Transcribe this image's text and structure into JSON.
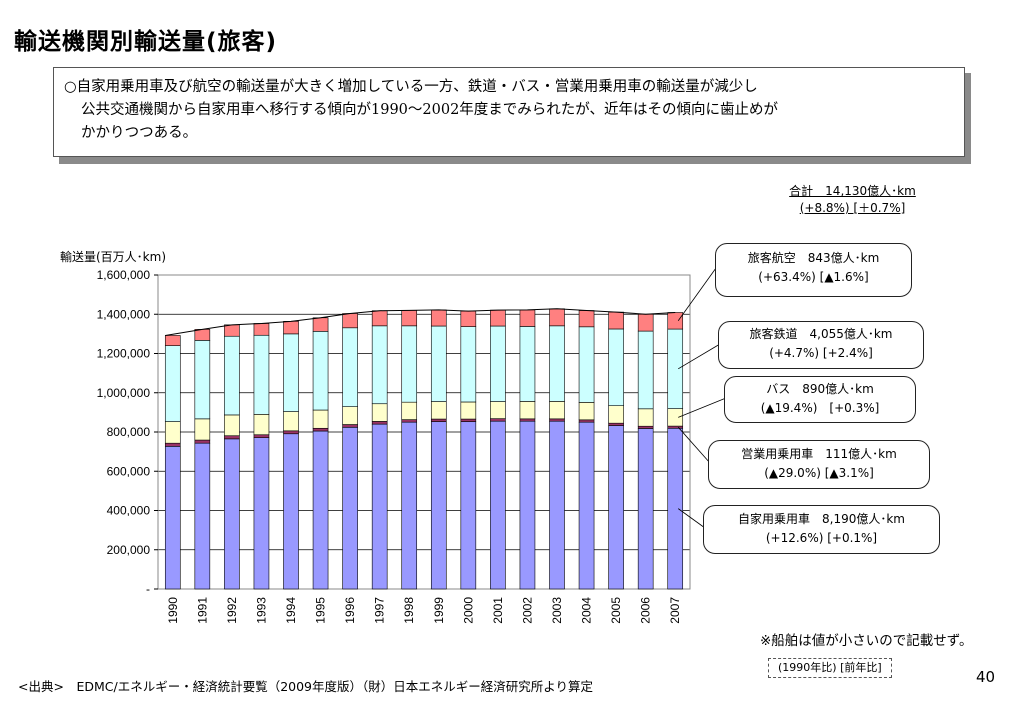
{
  "page": {
    "title": "輸送機関別輸送量(旅客)",
    "summary_lines": [
      "○自家用乗用車及び航空の輸送量が大きく増加している一方、鉄道・バス・営業用乗用車の輸送量が減少し",
      "公共交通機関から自家用車へ移行する傾向が1990〜2002年度までみられたが、近年はその傾向に歯止めが",
      "かかりつつある。"
    ],
    "total_line1": "合計　14,130億人･km",
    "total_line2": "(+8.8%) [＋0.7%]",
    "ylabel": "輸送量(百万人･km)",
    "ship_note": "※船舶は値が小さいので記載せず。",
    "legend_note": "(1990年比) [前年比]",
    "source": "<出典>　EDMC/エネルギー・経済統計要覧（2009年度版）（財）日本エネルギー経済研究所より算定",
    "page_number": "40"
  },
  "callouts": [
    {
      "line1": "旅客航空　843億人･km",
      "line2": "(+63.4%) [▲1.6%]"
    },
    {
      "line1": "旅客鉄道　4,055億人･km",
      "line2": "(+4.7%)  [+2.4%]"
    },
    {
      "line1": "バス　890億人･km",
      "line2": "(▲19.4%)　[+0.3%]"
    },
    {
      "line1": "営業用乗用車　111億人･km",
      "line2": "(▲29.0%)  [▲3.1%]"
    },
    {
      "line1": "自家用乗用車　8,190億人･km",
      "line2": "(+12.6%)  [+0.1%]"
    }
  ],
  "chart_data": {
    "type": "bar",
    "stacked": true,
    "categories": [
      "1990",
      "1991",
      "1992",
      "1993",
      "1994",
      "1995",
      "1996",
      "1997",
      "1998",
      "1999",
      "2000",
      "2001",
      "2002",
      "2003",
      "2004",
      "2005",
      "2006",
      "2007"
    ],
    "ylim": [
      0,
      1600000
    ],
    "yticks": [
      0,
      200000,
      400000,
      600000,
      800000,
      1000000,
      1200000,
      1400000,
      1600000
    ],
    "ytick_labels": [
      "-",
      "200,000",
      "400,000",
      "600,000",
      "800,000",
      "1,000,000",
      "1,200,000",
      "1,400,000",
      "1,600,000"
    ],
    "grid": true,
    "colors": {
      "private_car": "#9999ff",
      "commercial_car": "#993366",
      "bus": "#ffffcc",
      "rail": "#ccffff",
      "air": "#ff8080",
      "total_line": "#000000"
    },
    "series": [
      {
        "key": "private_car",
        "values": [
          727000,
          743000,
          765000,
          771000,
          791000,
          805000,
          824000,
          840000,
          850000,
          853000,
          853000,
          855000,
          855000,
          855000,
          850000,
          833000,
          818000,
          819000
        ]
      },
      {
        "key": "commercial_car",
        "values": [
          16000,
          16000,
          16000,
          15000,
          15000,
          14000,
          14000,
          14000,
          13000,
          13000,
          13000,
          13000,
          12000,
          12000,
          12000,
          12000,
          11500,
          11100
        ]
      },
      {
        "key": "bus",
        "values": [
          110000,
          108000,
          106000,
          104000,
          98000,
          93000,
          91000,
          90000,
          89000,
          89000,
          87000,
          87000,
          89000,
          89000,
          89000,
          89000,
          88700,
          89000
        ]
      },
      {
        "key": "rail",
        "values": [
          387000,
          400000,
          401000,
          403000,
          396000,
          401000,
          402000,
          397000,
          389000,
          385000,
          384000,
          385000,
          382000,
          385000,
          385000,
          391000,
          396000,
          405500
        ]
      },
      {
        "key": "air",
        "values": [
          52000,
          56000,
          58000,
          60000,
          64000,
          69000,
          73000,
          77000,
          79000,
          82000,
          79000,
          81000,
          84000,
          87000,
          83000,
          86000,
          85700,
          84300
        ]
      }
    ]
  }
}
